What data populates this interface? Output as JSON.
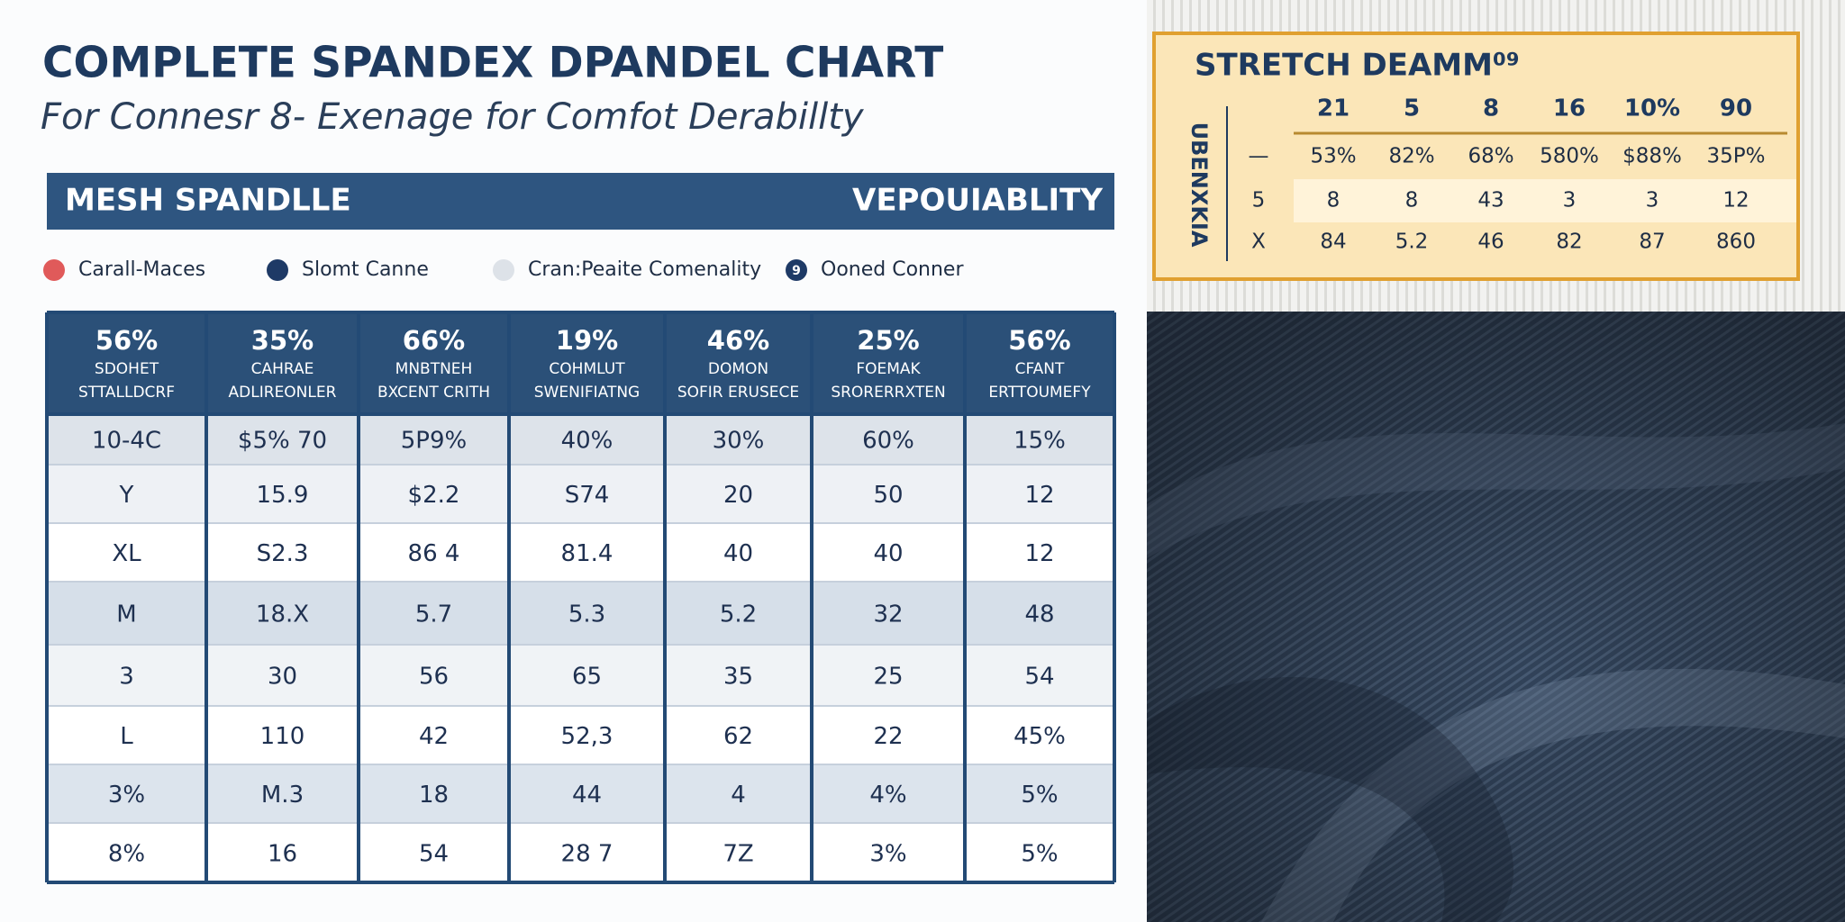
{
  "header": {
    "title": "COMPLETE SPANDEX DPANDEL CHART",
    "subtitle": "For Connesr 8- Exenage for Comfot Derabillty"
  },
  "banner": {
    "left": "MESH SPANDLLE",
    "right": "VEPOUIABLITY"
  },
  "legend": [
    {
      "label": "Carall-Maces"
    },
    {
      "label": "Slomt Canne"
    },
    {
      "label": "Cran:Peaite Comenality"
    },
    {
      "label": "Ooned Conner",
      "icon": "9"
    }
  ],
  "table": {
    "headers": [
      {
        "value": "56%",
        "lines": [
          "SDOHET",
          "STTALLDCRF"
        ]
      },
      {
        "value": "35%",
        "lines": [
          "CAHRAE",
          "ADLIREONLER"
        ]
      },
      {
        "value": "66%",
        "lines": [
          "MNBTNEH",
          "BXCENT CRITH"
        ]
      },
      {
        "value": "19%",
        "lines": [
          "COHMLUT",
          "SWENIFIATNG"
        ]
      },
      {
        "value": "46%",
        "lines": [
          "DOMON",
          "SOFIR ERUSECE"
        ]
      },
      {
        "value": "25%",
        "lines": [
          "FOEMAK",
          "SRORERRXTEN"
        ]
      },
      {
        "value": "56%",
        "lines": [
          "CFANT",
          "ERTTOUMEFY"
        ]
      }
    ],
    "rows": [
      [
        "10-4C",
        "$5% 70",
        "5P9%",
        "40%",
        "30%",
        "60%",
        "15%"
      ],
      [
        "Y",
        "15.9",
        "$2.2",
        "S74",
        "20",
        "50",
        "12"
      ],
      [
        "XL",
        "S2.3",
        "86 4",
        "81.4",
        "40",
        "40",
        "12"
      ],
      [
        "M",
        "18.X",
        "5.7",
        "5.3",
        "5.2",
        "32",
        "48"
      ],
      [
        "3",
        "30",
        "56",
        "65",
        "35",
        "25",
        "54"
      ],
      [
        "L",
        "110",
        "42",
        "52,3",
        "62",
        "22",
        "45%"
      ],
      [
        "3%",
        "M.3",
        "18",
        "44",
        "4",
        "4%",
        "5%"
      ],
      [
        "8%",
        "16",
        "54",
        "28 7",
        "7Z",
        "3%",
        "5%"
      ]
    ]
  },
  "side_table": {
    "title": "STRETCH DEAMM⁰⁹",
    "vertical_label": "UBENXKIA",
    "headers": [
      "21",
      "5",
      "8",
      "16",
      "10%",
      "90"
    ],
    "rows": [
      [
        "—",
        "53%",
        "82%",
        "68%",
        "580%",
        "$88%",
        "35P%"
      ],
      [
        "5",
        "8",
        "8",
        "43",
        "3",
        "3",
        "12"
      ],
      [
        "X",
        "84",
        "5.2",
        "46",
        "82",
        "87",
        "860"
      ]
    ]
  }
}
